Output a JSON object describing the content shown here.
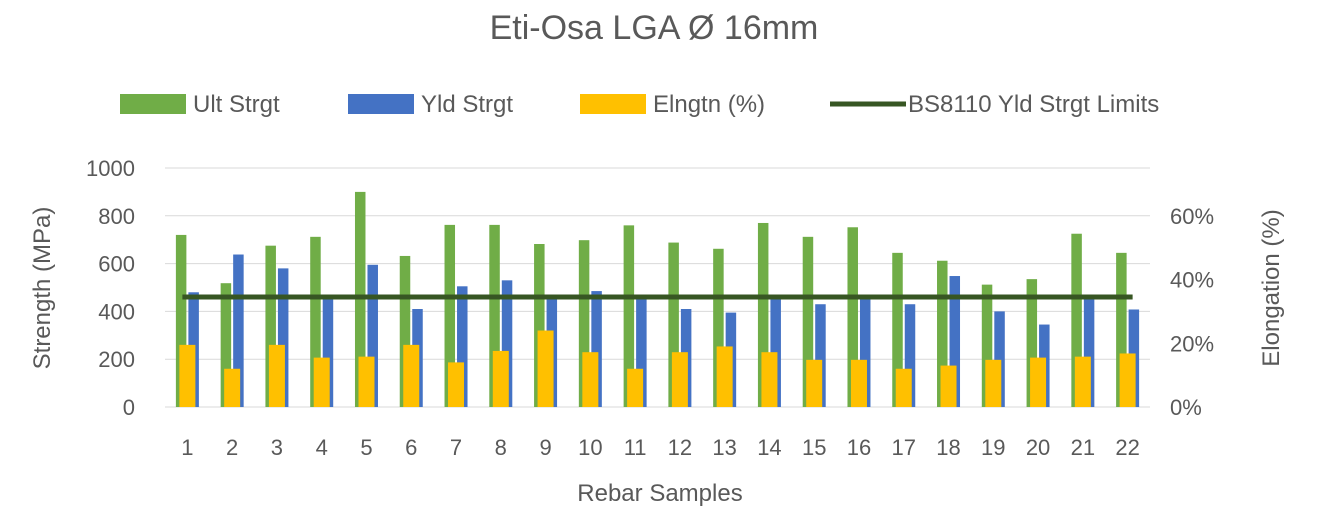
{
  "chart_data": {
    "type": "bar",
    "title": "Eti-Osa LGA Ø 16mm",
    "xlabel": "Rebar Samples",
    "ylabel": "Strength (MPa)",
    "y2label": "Elongation (%)",
    "ylim": [
      0,
      1000
    ],
    "yticks": [
      0,
      200,
      400,
      600,
      800,
      1000
    ],
    "y2lim": [
      0,
      0.75
    ],
    "y2ticks": [
      0,
      0.2,
      0.4,
      0.6
    ],
    "y2tick_labels": [
      "0%",
      "20%",
      "40%",
      "60%"
    ],
    "categories": [
      "1",
      "2",
      "3",
      "4",
      "5",
      "6",
      "7",
      "8",
      "9",
      "10",
      "11",
      "12",
      "13",
      "14",
      "15",
      "16",
      "17",
      "18",
      "19",
      "20",
      "21",
      "22"
    ],
    "grid": "horizontal",
    "legend_position": "top",
    "series": [
      {
        "name": "Ult Strgt",
        "kind": "bar",
        "axis": "left",
        "color": "#70ad47",
        "values": [
          720,
          518,
          675,
          712,
          900,
          632,
          762,
          762,
          682,
          698,
          760,
          688,
          662,
          770,
          712,
          752,
          645,
          612,
          512,
          535,
          725,
          645
        ]
      },
      {
        "name": "Yld Strgt",
        "kind": "bar",
        "axis": "left",
        "color": "#4472c4",
        "values": [
          480,
          638,
          580,
          460,
          595,
          410,
          505,
          530,
          460,
          485,
          460,
          410,
          395,
          460,
          430,
          460,
          430,
          548,
          400,
          345,
          460,
          408
        ]
      },
      {
        "name": "Elngtn (%)",
        "kind": "bar",
        "axis": "right",
        "color": "#ffc000",
        "values": [
          0.195,
          0.12,
          0.195,
          0.155,
          0.158,
          0.195,
          0.14,
          0.176,
          0.24,
          0.172,
          0.12,
          0.172,
          0.19,
          0.172,
          0.148,
          0.148,
          0.12,
          0.13,
          0.148,
          0.155,
          0.158,
          0.168
        ]
      },
      {
        "name": "BS8110 Yld Strgt Limits",
        "kind": "line",
        "axis": "left",
        "color": "#375623",
        "value": 460
      }
    ]
  }
}
